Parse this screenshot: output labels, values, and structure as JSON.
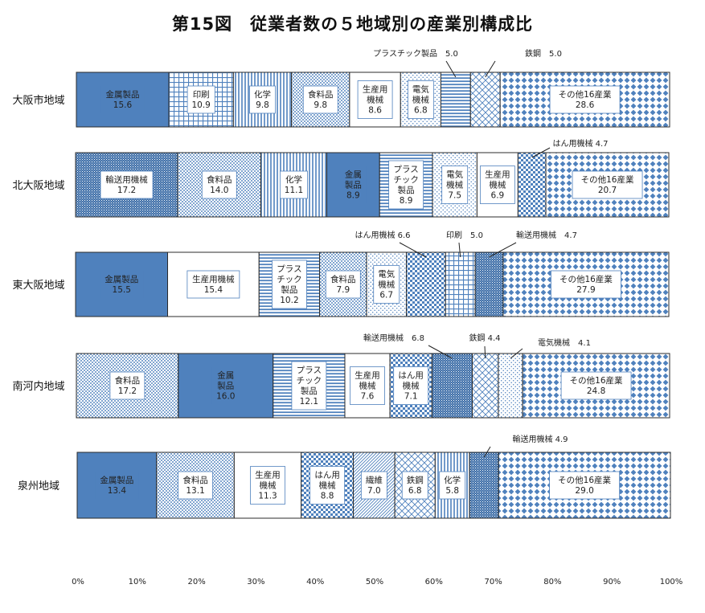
{
  "chart_data": {
    "type": "bar",
    "orientation": "horizontal",
    "stacked": true,
    "title": "第15図　従業者数の５地域別の産業別構成比",
    "xlim": [
      0,
      100
    ],
    "xticks": [
      "0%",
      "10%",
      "20%",
      "30%",
      "40%",
      "50%",
      "60%",
      "70%",
      "80%",
      "90%",
      "100%"
    ],
    "colors": {
      "bar_fill": "#4f81bd",
      "bar_stroke": "#2b2b2b",
      "accent": "#4a78b8"
    },
    "rows": [
      {
        "label": "大阪市地域",
        "segments": [
          {
            "name": "金属製品",
            "label_lines": [
              "金属製品"
            ],
            "value": 15.6,
            "value_text": "15.6",
            "pattern": "solid"
          },
          {
            "name": "印刷",
            "label_lines": [
              "印刷"
            ],
            "value": 10.9,
            "value_text": "10.9",
            "pattern": "grid"
          },
          {
            "name": "化学",
            "label_lines": [
              "化学"
            ],
            "value": 9.8,
            "value_text": "9.8",
            "pattern": "vlines"
          },
          {
            "name": "食料品",
            "label_lines": [
              "食料品"
            ],
            "value": 9.8,
            "value_text": "9.8",
            "pattern": "dots"
          },
          {
            "name": "生産用機械",
            "label_lines": [
              "生産用",
              "機械"
            ],
            "value": 8.6,
            "value_text": "8.6",
            "pattern": "white"
          },
          {
            "name": "電気機械",
            "label_lines": [
              "電気",
              "機械"
            ],
            "value": 6.8,
            "value_text": "6.8",
            "pattern": "dots-sparse"
          },
          {
            "name": "プラスチック製品",
            "label_lines": [],
            "value": 5.0,
            "value_text": "",
            "pattern": "hlines",
            "callout": {
              "text": "プラスチック製品　5.0"
            }
          },
          {
            "name": "鉄鋼",
            "label_lines": [],
            "value": 5.0,
            "value_text": "",
            "pattern": "lattice",
            "callout": {
              "text": "鉄鋼　5.0"
            }
          },
          {
            "name": "その他16産業",
            "label_lines": [
              "その他16産業"
            ],
            "value": 28.6,
            "value_text": "28.6",
            "pattern": "diamond"
          }
        ]
      },
      {
        "label": "北大阪地域",
        "segments": [
          {
            "name": "輸送用機械",
            "label_lines": [
              "輸送用機械"
            ],
            "value": 17.2,
            "value_text": "17.2",
            "pattern": "fine"
          },
          {
            "name": "食料品",
            "label_lines": [
              "食料品"
            ],
            "value": 14.0,
            "value_text": "14.0",
            "pattern": "dots"
          },
          {
            "name": "化学",
            "label_lines": [
              "化学"
            ],
            "value": 11.1,
            "value_text": "11.1",
            "pattern": "vlines"
          },
          {
            "name": "金属製品",
            "label_lines": [
              "金属",
              "製品"
            ],
            "value": 8.9,
            "value_text": "8.9",
            "pattern": "solid"
          },
          {
            "name": "プラスチック製品",
            "label_lines": [
              "プラス",
              "チック",
              "製品"
            ],
            "value": 8.9,
            "value_text": "8.9",
            "pattern": "hlines"
          },
          {
            "name": "電気機械",
            "label_lines": [
              "電気",
              "機械"
            ],
            "value": 7.5,
            "value_text": "7.5",
            "pattern": "dots-sparse"
          },
          {
            "name": "生産用機械",
            "label_lines": [
              "生産用",
              "機械"
            ],
            "value": 6.9,
            "value_text": "6.9",
            "pattern": "white"
          },
          {
            "name": "はん用機械",
            "label_lines": [],
            "value": 4.7,
            "value_text": "",
            "pattern": "checker",
            "callout": {
              "text": "はん用機械 4.7"
            }
          },
          {
            "name": "その他16産業",
            "label_lines": [
              "その他16産業"
            ],
            "value": 20.7,
            "value_text": "20.7",
            "pattern": "diamond"
          }
        ]
      },
      {
        "label": "東大阪地域",
        "segments": [
          {
            "name": "金属製品",
            "label_lines": [
              "金属製品"
            ],
            "value": 15.5,
            "value_text": "15.5",
            "pattern": "solid"
          },
          {
            "name": "生産用機械",
            "label_lines": [
              "生産用機械"
            ],
            "value": 15.4,
            "value_text": "15.4",
            "pattern": "white"
          },
          {
            "name": "プラスチック製品",
            "label_lines": [
              "プラス",
              "チック",
              "製品"
            ],
            "value": 10.2,
            "value_text": "10.2",
            "pattern": "hlines"
          },
          {
            "name": "食料品",
            "label_lines": [
              "食料品"
            ],
            "value": 7.9,
            "value_text": "7.9",
            "pattern": "dots"
          },
          {
            "name": "電気機械",
            "label_lines": [
              "電気",
              "機械"
            ],
            "value": 6.7,
            "value_text": "6.7",
            "pattern": "dots-sparse"
          },
          {
            "name": "はん用機械",
            "label_lines": [],
            "value": 6.6,
            "value_text": "",
            "pattern": "checker",
            "callout": {
              "text": "はん用機械 6.6"
            }
          },
          {
            "name": "印刷",
            "label_lines": [],
            "value": 5.0,
            "value_text": "",
            "pattern": "grid",
            "callout": {
              "text": "印刷　5.0"
            }
          },
          {
            "name": "輸送用機械",
            "label_lines": [],
            "value": 4.7,
            "value_text": "",
            "pattern": "fine",
            "callout": {
              "text": "輸送用機械　4.7"
            }
          },
          {
            "name": "その他16産業",
            "label_lines": [
              "その他16産業"
            ],
            "value": 27.9,
            "value_text": "27.9",
            "pattern": "diamond"
          }
        ]
      },
      {
        "label": "南河内地域",
        "segments": [
          {
            "name": "食料品",
            "label_lines": [
              "食料品"
            ],
            "value": 17.2,
            "value_text": "17.2",
            "pattern": "dots"
          },
          {
            "name": "金属製品",
            "label_lines": [
              "金属",
              "製品"
            ],
            "value": 16.0,
            "value_text": "16.0",
            "pattern": "solid"
          },
          {
            "name": "プラスチック製品",
            "label_lines": [
              "プラス",
              "チック",
              "製品"
            ],
            "value": 12.1,
            "value_text": "12.1",
            "pattern": "hlines"
          },
          {
            "name": "生産用機械",
            "label_lines": [
              "生産用",
              "機械"
            ],
            "value": 7.6,
            "value_text": "7.6",
            "pattern": "white"
          },
          {
            "name": "はん用機械",
            "label_lines": [
              "はん用",
              "機械"
            ],
            "value": 7.1,
            "value_text": "7.1",
            "pattern": "checker"
          },
          {
            "name": "輸送用機械",
            "label_lines": [],
            "value": 6.8,
            "value_text": "",
            "pattern": "fine",
            "callout": {
              "text": "輸送用機械　6.8"
            }
          },
          {
            "name": "鉄鋼",
            "label_lines": [],
            "value": 4.4,
            "value_text": "",
            "pattern": "lattice",
            "callout": {
              "text": "鉄鋼 4.4"
            }
          },
          {
            "name": "電気機械",
            "label_lines": [],
            "value": 4.1,
            "value_text": "",
            "pattern": "dots-sparse",
            "callout": {
              "text": "電気機械　4.1"
            }
          },
          {
            "name": "その他16産業",
            "label_lines": [
              "その他16産業"
            ],
            "value": 24.8,
            "value_text": "24.8",
            "pattern": "diamond"
          }
        ]
      },
      {
        "label": "泉州地域",
        "segments": [
          {
            "name": "金属製品",
            "label_lines": [
              "金属製品"
            ],
            "value": 13.4,
            "value_text": "13.4",
            "pattern": "solid"
          },
          {
            "name": "食料品",
            "label_lines": [
              "食料品"
            ],
            "value": 13.1,
            "value_text": "13.1",
            "pattern": "dots"
          },
          {
            "name": "生産用機械",
            "label_lines": [
              "生産用",
              "機械"
            ],
            "value": 11.3,
            "value_text": "11.3",
            "pattern": "white"
          },
          {
            "name": "はん用機械",
            "label_lines": [
              "はん用",
              "機械"
            ],
            "value": 8.8,
            "value_text": "8.8",
            "pattern": "checker"
          },
          {
            "name": "繊維",
            "label_lines": [
              "繊維"
            ],
            "value": 7.0,
            "value_text": "7.0",
            "pattern": "diag"
          },
          {
            "name": "鉄鋼",
            "label_lines": [
              "鉄鋼"
            ],
            "value": 6.8,
            "value_text": "6.8",
            "pattern": "lattice"
          },
          {
            "name": "化学",
            "label_lines": [
              "化学"
            ],
            "value": 5.8,
            "value_text": "5.8",
            "pattern": "vlines"
          },
          {
            "name": "輸送用機械",
            "label_lines": [],
            "value": 4.9,
            "value_text": "",
            "pattern": "fine",
            "callout": {
              "text": "輸送用機械 4.9"
            }
          },
          {
            "name": "その他16産業",
            "label_lines": [
              "その他16産業"
            ],
            "value": 29.0,
            "value_text": "29.0",
            "pattern": "diamond"
          }
        ]
      }
    ]
  }
}
